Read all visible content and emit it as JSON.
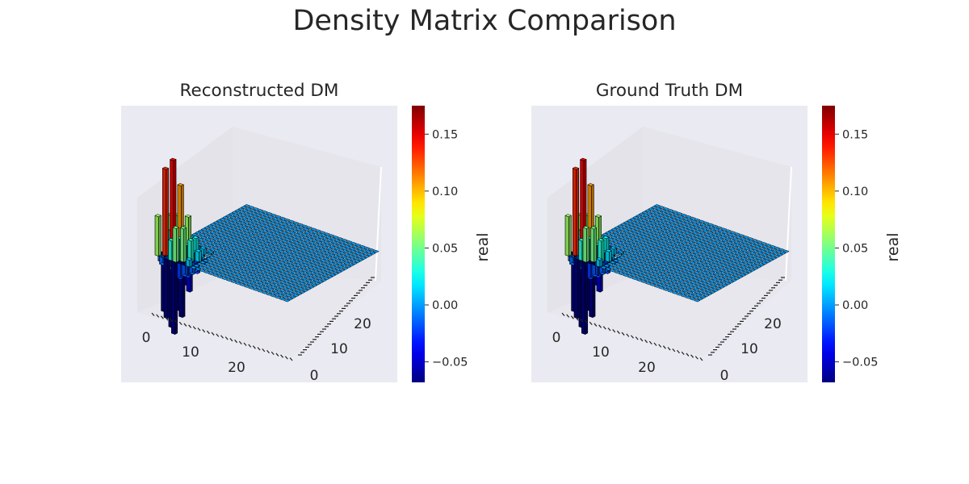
{
  "title": "Density Matrix Comparison",
  "chart_data": [
    {
      "type": "bar3d",
      "title": "Reconstructed DM",
      "x_ticks": [
        "0",
        "10",
        "20"
      ],
      "y_ticks": [
        "0",
        "10",
        "20"
      ],
      "grid_size": [
        30,
        30
      ],
      "colorbar": {
        "label": "real",
        "ticks": [
          "−0.05",
          "0.00",
          "0.05",
          "0.10",
          "0.15"
        ],
        "tick_values": [
          -0.05,
          0.0,
          0.05,
          0.1,
          0.15
        ],
        "range": [
          -0.068,
          0.175
        ],
        "colormap": "jet"
      },
      "peak_values": {
        "max": 0.17,
        "min": -0.06
      },
      "note_values": "Values concentrated in low-index block (indices 0-6); near zero elsewhere"
    },
    {
      "type": "bar3d",
      "title": "Ground Truth DM",
      "x_ticks": [
        "0",
        "10",
        "20"
      ],
      "y_ticks": [
        "0",
        "10",
        "20"
      ],
      "grid_size": [
        30,
        30
      ],
      "colorbar": {
        "label": "real",
        "ticks": [
          "−0.05",
          "0.00",
          "0.05",
          "0.10",
          "0.15"
        ],
        "tick_values": [
          -0.05,
          0.0,
          0.05,
          0.1,
          0.15
        ],
        "range": [
          -0.068,
          0.175
        ],
        "colormap": "jet"
      },
      "peak_values": {
        "max": 0.17,
        "min": -0.06
      }
    }
  ],
  "colors": {
    "axes_bg": "#eaeaf2",
    "pane": "#e3e3e9",
    "bar_edge": "#000000"
  }
}
